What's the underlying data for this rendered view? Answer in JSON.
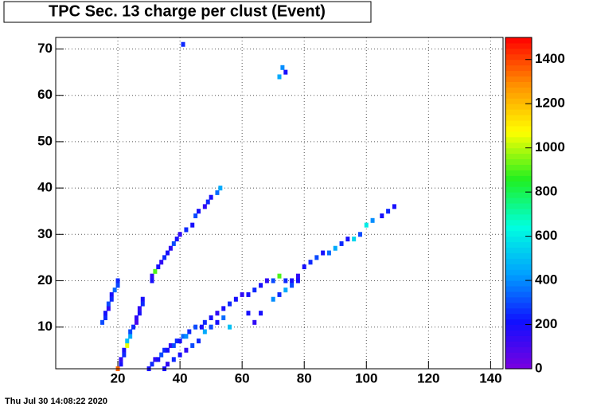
{
  "chart_data": {
    "type": "heatmap",
    "title": "TPC Sec. 13 charge per clust (Event)",
    "footer": "Thu Jul 30 14:08:22 2020",
    "xlim": [
      0,
      144
    ],
    "ylim": [
      1,
      72.5
    ],
    "zlim": [
      0,
      1500
    ],
    "xticks": [
      20,
      40,
      60,
      80,
      100,
      120,
      140
    ],
    "yticks": [
      10,
      20,
      30,
      40,
      50,
      60,
      70
    ],
    "zticks": [
      0,
      200,
      400,
      600,
      800,
      1000,
      1200,
      1400
    ],
    "grid": true,
    "palette": [
      "#7a00e0",
      "#1010ff",
      "#00a0ff",
      "#00ffe0",
      "#20f020",
      "#ffff00",
      "#ff9000",
      "#ff0000"
    ],
    "x": [
      15,
      16,
      16,
      17,
      17,
      18,
      18,
      19,
      20,
      20,
      20,
      21,
      21,
      22,
      22,
      23,
      23,
      24,
      24,
      25,
      26,
      26,
      27,
      27,
      28,
      28,
      31,
      31,
      32,
      33,
      34,
      35,
      36,
      37,
      38,
      39,
      40,
      42,
      44,
      45,
      46,
      48,
      49,
      50,
      52,
      53,
      30,
      31,
      32,
      33,
      34,
      35,
      36,
      37,
      38,
      39,
      40,
      41,
      42,
      43,
      45,
      47,
      48,
      50,
      52,
      54,
      56,
      58,
      60,
      62,
      64,
      66,
      68,
      70,
      72,
      74,
      76,
      78,
      80,
      82,
      84,
      86,
      88,
      90,
      92,
      94,
      96,
      98,
      100,
      102,
      105,
      107,
      109,
      35,
      36,
      38,
      40,
      42,
      44,
      46,
      48,
      50,
      52,
      54,
      56,
      62,
      64,
      66,
      70,
      72,
      74,
      76,
      78,
      41,
      72,
      73,
      74
    ],
    "y": [
      11,
      12,
      13,
      14,
      15,
      16,
      17,
      18,
      19,
      20,
      1,
      2,
      3,
      4,
      5,
      6,
      7,
      8,
      9,
      10,
      11,
      12,
      13,
      14,
      15,
      16,
      20,
      21,
      22,
      23,
      24,
      25,
      26,
      27,
      28,
      29,
      30,
      31,
      32,
      34,
      35,
      36,
      37,
      38,
      39,
      40,
      1,
      2,
      3,
      3,
      4,
      5,
      5,
      6,
      6,
      7,
      7,
      8,
      8,
      9,
      10,
      10,
      11,
      12,
      13,
      14,
      15,
      16,
      17,
      17,
      18,
      19,
      20,
      20,
      21,
      20,
      20,
      21,
      23,
      24,
      25,
      26,
      26,
      27,
      28,
      29,
      29,
      30,
      32,
      33,
      34,
      35,
      36,
      1,
      2,
      3,
      4,
      5,
      6,
      7,
      9,
      10,
      11,
      12,
      10,
      13,
      11,
      13,
      16,
      17,
      18,
      19,
      20,
      71,
      64,
      66,
      65
    ],
    "values": [
      300,
      250,
      200,
      150,
      300,
      250,
      200,
      350,
      300,
      250,
      1350,
      200,
      150,
      250,
      200,
      1050,
      500,
      450,
      300,
      250,
      100,
      150,
      200,
      150,
      250,
      200,
      200,
      150,
      900,
      200,
      150,
      250,
      200,
      150,
      300,
      200,
      150,
      250,
      200,
      300,
      200,
      150,
      250,
      200,
      350,
      450,
      200,
      250,
      150,
      200,
      300,
      250,
      200,
      150,
      300,
      250,
      200,
      350,
      400,
      250,
      300,
      200,
      250,
      200,
      150,
      200,
      250,
      200,
      150,
      200,
      250,
      200,
      150,
      300,
      900,
      250,
      200,
      150,
      200,
      250,
      300,
      200,
      350,
      450,
      250,
      200,
      550,
      300,
      600,
      400,
      200,
      250,
      200,
      200,
      150,
      250,
      200,
      150,
      300,
      250,
      450,
      300,
      200,
      350,
      500,
      200,
      150,
      200,
      400,
      250,
      450,
      300,
      200,
      250,
      450,
      400,
      200
    ]
  }
}
